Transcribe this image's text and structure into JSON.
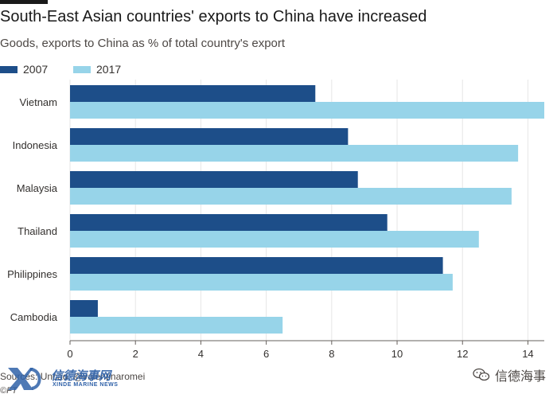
{
  "chart_data": {
    "type": "bar",
    "orientation": "horizontal",
    "title": "South-East Asian countries' exports to China have increased",
    "subtitle": "Goods, exports to China as % of total country's export",
    "categories": [
      "Vietnam",
      "Indonesia",
      "Malaysia",
      "Thailand",
      "Philippines",
      "Cambodia"
    ],
    "series": [
      {
        "name": "2007",
        "values": [
          7.5,
          8.5,
          8.8,
          9.7,
          11.4,
          0.85
        ]
      },
      {
        "name": "2017",
        "values": [
          14.5,
          13.7,
          13.5,
          12.5,
          11.7,
          6.5
        ]
      }
    ],
    "xlim": [
      0,
      14.5
    ],
    "xticks": [
      0,
      2,
      4,
      6,
      8,
      10,
      12,
      14
    ],
    "grid": true,
    "legend_position": "top-left"
  },
  "colors": {
    "series_2007": "#1d4e89",
    "series_2017": "#97d4e9",
    "grid": "#e6e6e6",
    "text": "#33302e"
  },
  "footer": {
    "source": "Sources: Uncad; @valentinaromei",
    "copyright": "©FT"
  },
  "watermark": {
    "left_logo_text": "信德海事网",
    "left_logo_subtext": "XINDE MARINE NEWS",
    "right_text": "信德海事",
    "left_icon": "xd-logo-icon",
    "right_icon": "wechat-icon"
  }
}
